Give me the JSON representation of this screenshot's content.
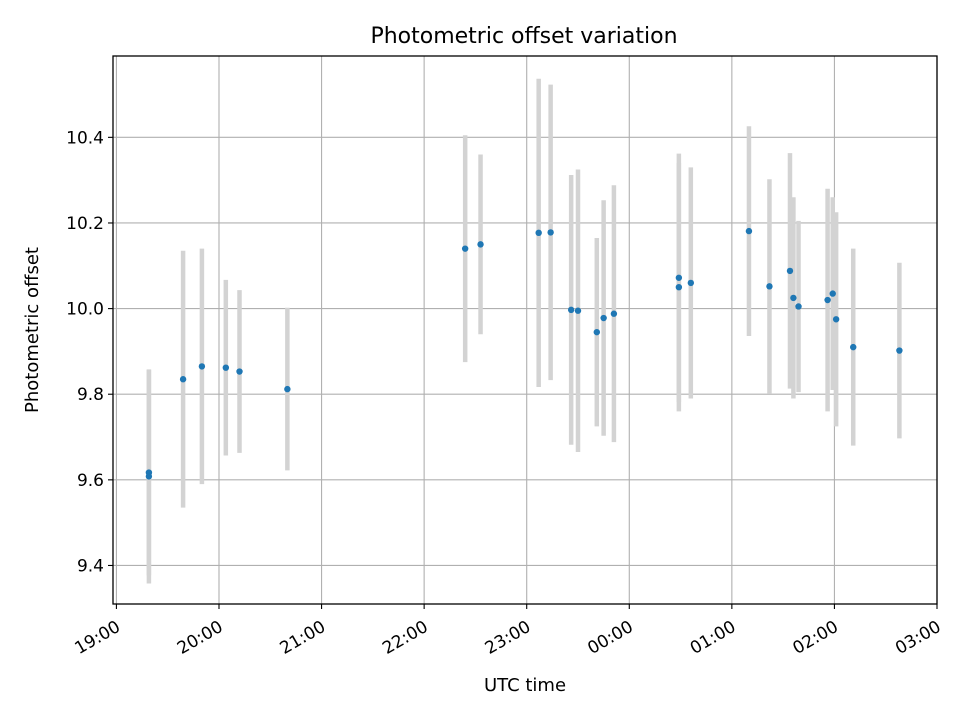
{
  "chart_data": {
    "type": "scatter",
    "title": "Photometric offset variation",
    "xlabel": "UTC time",
    "ylabel": "Photometric offset",
    "x_unit": "time (HH:MM), date rolls over after 23:59",
    "xlim": [
      "18:58",
      "03:00"
    ],
    "ylim": [
      9.31,
      10.59
    ],
    "x_ticks": [
      "19:00",
      "20:00",
      "21:00",
      "22:00",
      "23:00",
      "00:00",
      "01:00",
      "02:00",
      "03:00"
    ],
    "y_ticks": [
      "9.4",
      "9.6",
      "9.8",
      "10.0",
      "10.2",
      "10.4"
    ],
    "grid": true,
    "point_color": "#1f77b4",
    "errorbar_color": "#d3d3d3",
    "points": [
      {
        "x": "19:19",
        "y": 9.617,
        "err": 0.24
      },
      {
        "x": "19:19",
        "y": 9.608,
        "err": 0.25
      },
      {
        "x": "19:39",
        "y": 9.835,
        "err": 0.3
      },
      {
        "x": "19:50",
        "y": 9.865,
        "err": 0.275
      },
      {
        "x": "20:04",
        "y": 9.862,
        "err": 0.205
      },
      {
        "x": "20:12",
        "y": 9.853,
        "err": 0.19
      },
      {
        "x": "20:40",
        "y": 9.812,
        "err": 0.19
      },
      {
        "x": "22:24",
        "y": 10.14,
        "err": 0.265
      },
      {
        "x": "22:33",
        "y": 10.15,
        "err": 0.21
      },
      {
        "x": "23:07",
        "y": 10.177,
        "err": 0.36
      },
      {
        "x": "23:14",
        "y": 10.178,
        "err": 0.345
      },
      {
        "x": "23:26",
        "y": 9.997,
        "err": 0.315
      },
      {
        "x": "23:30",
        "y": 9.995,
        "err": 0.33
      },
      {
        "x": "23:41",
        "y": 9.945,
        "err": 0.22
      },
      {
        "x": "23:45",
        "y": 9.978,
        "err": 0.275
      },
      {
        "x": "23:51",
        "y": 9.988,
        "err": 0.3
      },
      {
        "x": "00:29",
        "y": 10.05,
        "err": 0.29
      },
      {
        "x": "00:29",
        "y": 10.072,
        "err": 0.29
      },
      {
        "x": "00:36",
        "y": 10.06,
        "err": 0.27
      },
      {
        "x": "01:10",
        "y": 10.181,
        "err": 0.245
      },
      {
        "x": "01:22",
        "y": 10.052,
        "err": 0.25
      },
      {
        "x": "01:34",
        "y": 10.088,
        "err": 0.275
      },
      {
        "x": "01:36",
        "y": 10.025,
        "err": 0.235
      },
      {
        "x": "01:39",
        "y": 10.005,
        "err": 0.2
      },
      {
        "x": "01:56",
        "y": 10.02,
        "err": 0.26
      },
      {
        "x": "01:59",
        "y": 10.035,
        "err": 0.225
      },
      {
        "x": "02:01",
        "y": 9.975,
        "err": 0.25
      },
      {
        "x": "02:11",
        "y": 9.91,
        "err": 0.23
      },
      {
        "x": "02:38",
        "y": 9.902,
        "err": 0.205
      }
    ]
  }
}
